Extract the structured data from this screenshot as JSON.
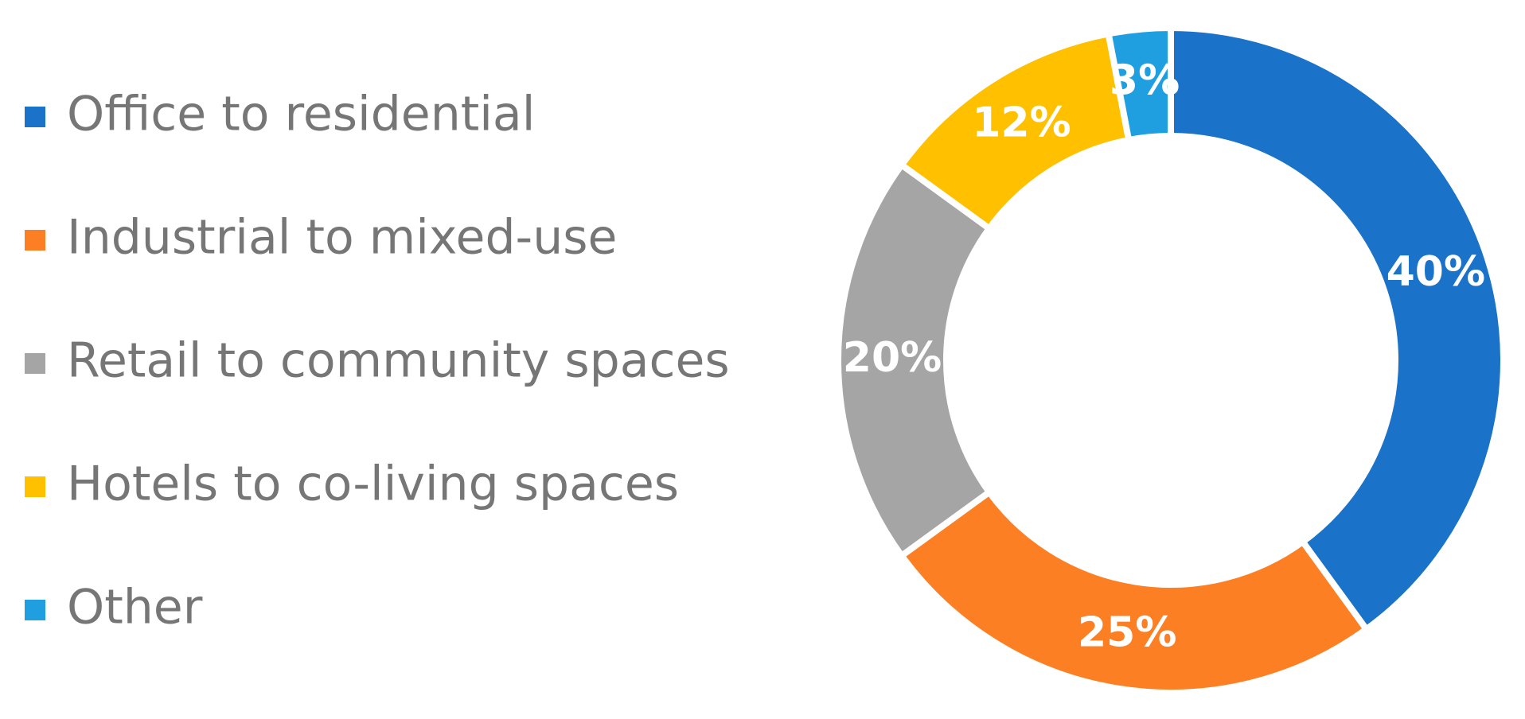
{
  "chart_data": {
    "type": "donut",
    "categories": [
      "Office to residential",
      "Industrial to mixed-use",
      "Retail to community spaces",
      "Hotels to co-living spaces",
      "Other"
    ],
    "values": [
      40,
      25,
      20,
      12,
      3
    ],
    "value_labels": [
      "40%",
      "25%",
      "20%",
      "12%",
      "3%"
    ],
    "colors": [
      "#1a73c8",
      "#fd7f23",
      "#a5a5a5",
      "#ffc000",
      "#1f9fe0"
    ],
    "legend": "left"
  }
}
